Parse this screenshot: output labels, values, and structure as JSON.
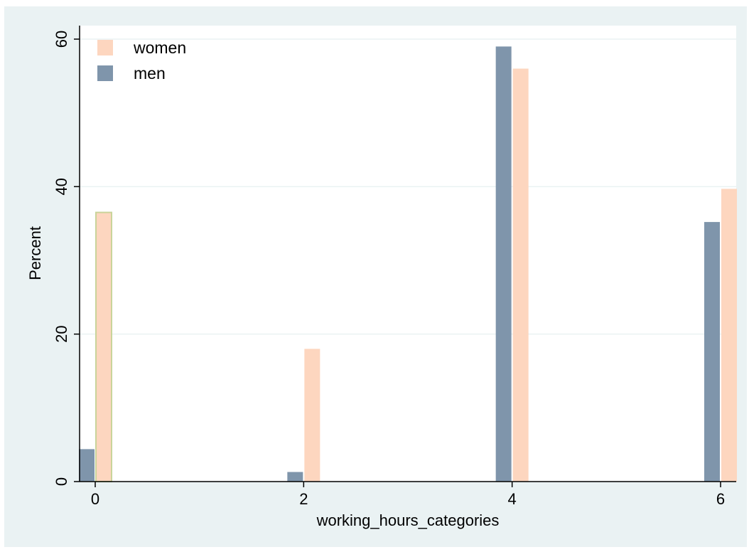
{
  "chart_data": {
    "type": "bar",
    "xlabel": "working_hours_categories",
    "ylabel": "Percent",
    "xlim": [
      -0.15,
      6.15
    ],
    "ylim": [
      0,
      60
    ],
    "x_ticks": [
      0,
      2,
      4,
      6
    ],
    "x_tick_labels": [
      "0",
      "2",
      "4",
      "6"
    ],
    "y_ticks": [
      0,
      20,
      40,
      60
    ],
    "y_tick_labels": [
      "0",
      "20",
      "40",
      "60"
    ],
    "grid": true,
    "legend_position": "top-left",
    "series": [
      {
        "name": "women",
        "color": "#FDD6BF",
        "x": [
          0,
          2,
          4,
          6
        ],
        "values": [
          36.5,
          18.0,
          56.0,
          39.7
        ]
      },
      {
        "name": "men",
        "color": "#7F95AB",
        "x": [
          0,
          2,
          4,
          6
        ],
        "values": [
          4.4,
          1.3,
          59.0,
          35.2
        ]
      }
    ],
    "colors": {
      "background": "#EAF2F3",
      "plot_background": "#FFFFFF",
      "grid": "#EAF2F3",
      "highlight_outline": "#C9D49A"
    }
  }
}
